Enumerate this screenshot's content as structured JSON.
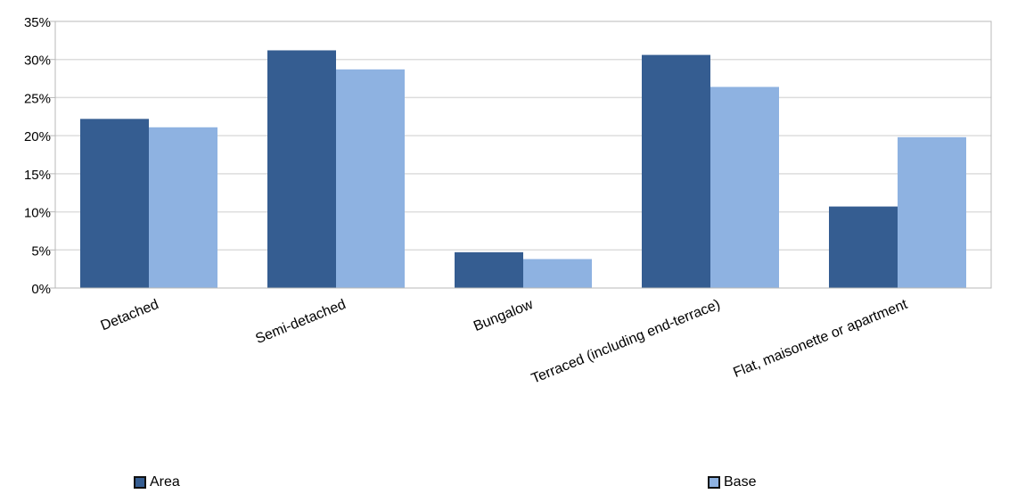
{
  "chart_data": {
    "type": "bar",
    "categories": [
      "Detached",
      "Semi-detached",
      "Bungalow",
      "Terraced (including end-terrace)",
      "Flat, maisonette or apartment"
    ],
    "series": [
      {
        "name": "Area",
        "values": [
          22.2,
          31.2,
          4.7,
          30.6,
          10.7
        ]
      },
      {
        "name": "Base",
        "values": [
          21.1,
          28.7,
          3.8,
          26.4,
          19.8
        ]
      }
    ],
    "ylim": [
      0,
      35
    ],
    "yticks": [
      0,
      5,
      10,
      15,
      20,
      25,
      30,
      35
    ],
    "ytick_labels": [
      "0%",
      "5%",
      "10%",
      "15%",
      "20%",
      "25%",
      "30%",
      "35%"
    ],
    "grid": true,
    "legend_position": "bottom",
    "colors": {
      "Area": "#355d91",
      "Base": "#8eb2e1",
      "grid": "#dddddd",
      "axis": "#b8b8b8"
    }
  }
}
